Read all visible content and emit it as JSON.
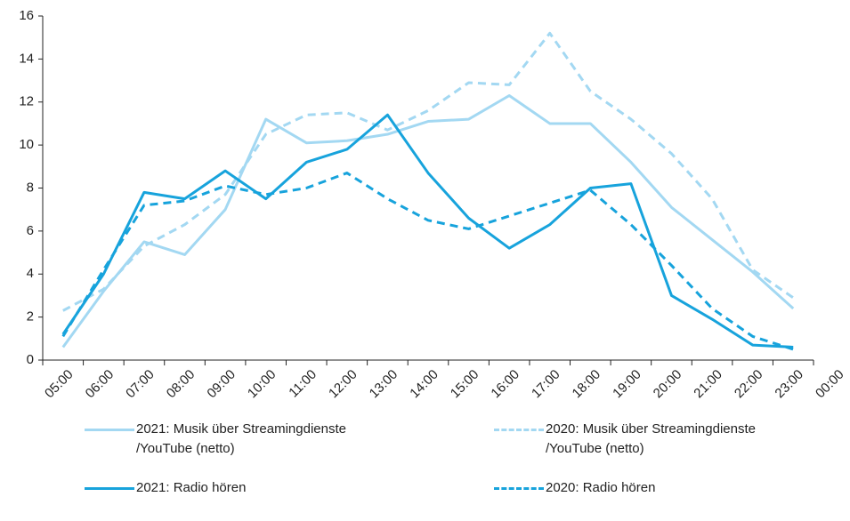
{
  "chart_data": {
    "type": "line",
    "x": [
      5.5,
      6.5,
      7.5,
      8.5,
      9.5,
      10.5,
      11.5,
      12.5,
      13.5,
      14.5,
      15.5,
      16.5,
      17.5,
      18.5,
      19.5,
      20.5,
      21.5,
      22.5,
      23.5
    ],
    "xlim": [
      5,
      24
    ],
    "xticks": [
      {
        "value": 5,
        "label": "05:00"
      },
      {
        "value": 6,
        "label": "06:00"
      },
      {
        "value": 7,
        "label": "07:00"
      },
      {
        "value": 8,
        "label": "08:00"
      },
      {
        "value": 9,
        "label": "09:00"
      },
      {
        "value": 10,
        "label": "10:00"
      },
      {
        "value": 11,
        "label": "11:00"
      },
      {
        "value": 12,
        "label": "12:00"
      },
      {
        "value": 13,
        "label": "13:00"
      },
      {
        "value": 14,
        "label": "14:00"
      },
      {
        "value": 15,
        "label": "15:00"
      },
      {
        "value": 16,
        "label": "16:00"
      },
      {
        "value": 17,
        "label": "17:00"
      },
      {
        "value": 18,
        "label": "18:00"
      },
      {
        "value": 19,
        "label": "19:00"
      },
      {
        "value": 20,
        "label": "20:00"
      },
      {
        "value": 21,
        "label": "21:00"
      },
      {
        "value": 22,
        "label": "22:00"
      },
      {
        "value": 23,
        "label": "23:00"
      },
      {
        "value": 24,
        "label": "00:00"
      }
    ],
    "ylim": [
      0,
      16
    ],
    "yticks": [
      0,
      2,
      4,
      6,
      8,
      10,
      12,
      14,
      16
    ],
    "series": [
      {
        "name": "2021: Musik über Streamingdienste\n/YouTube (netto)",
        "color": "#a3d8f2",
        "dashed": false,
        "values": [
          0.6,
          3.2,
          5.5,
          4.9,
          7.0,
          11.2,
          10.1,
          10.2,
          10.5,
          11.1,
          11.2,
          12.3,
          11.0,
          11.0,
          9.2,
          7.1,
          5.6,
          4.1,
          2.4
        ]
      },
      {
        "name": "2020: Musik über Streamingdienste\n/YouTube (netto)",
        "color": "#a3d8f2",
        "dashed": true,
        "values": [
          2.3,
          3.3,
          5.3,
          6.3,
          7.7,
          10.5,
          11.4,
          11.5,
          10.7,
          11.6,
          12.9,
          12.8,
          15.2,
          12.5,
          11.2,
          9.6,
          7.5,
          4.2,
          2.9
        ]
      },
      {
        "name": "2021: Radio hören",
        "color": "#17a3dc",
        "dashed": false,
        "values": [
          1.2,
          4.0,
          7.8,
          7.5,
          8.8,
          7.5,
          9.2,
          9.8,
          11.4,
          8.7,
          6.6,
          5.2,
          6.3,
          8.0,
          8.2,
          3.0,
          1.9,
          0.7,
          0.6
        ]
      },
      {
        "name": "2020: Radio hören",
        "color": "#17a3dc",
        "dashed": true,
        "values": [
          1.1,
          4.2,
          7.2,
          7.4,
          8.1,
          7.7,
          8.0,
          8.7,
          7.5,
          6.5,
          6.1,
          6.7,
          7.3,
          7.9,
          6.3,
          4.4,
          2.4,
          1.1,
          0.5
        ]
      }
    ]
  }
}
